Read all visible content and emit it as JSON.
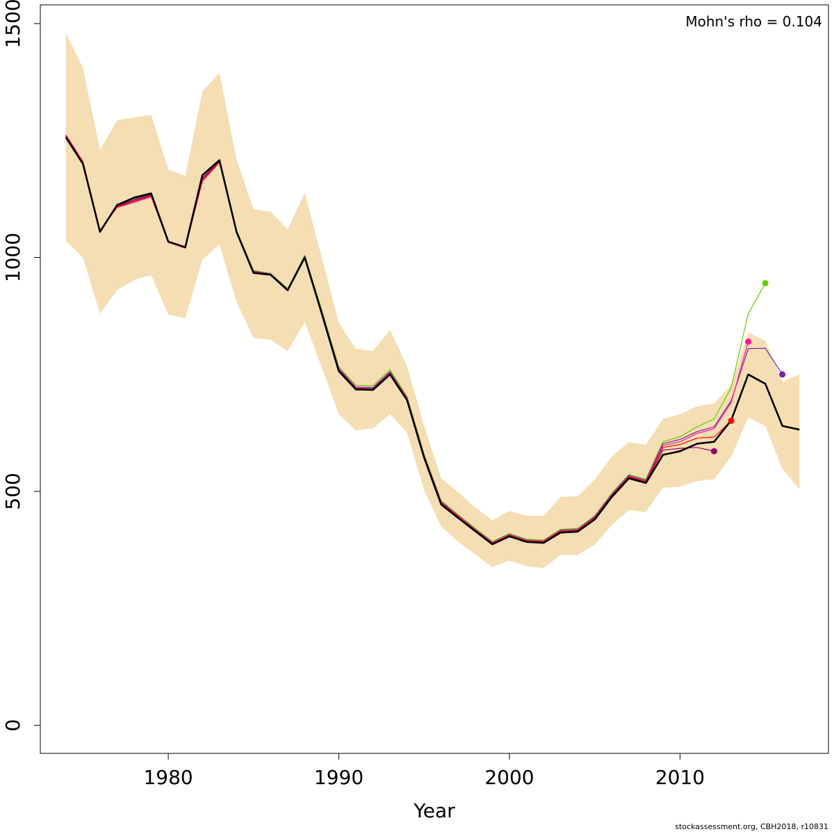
{
  "chart_data": {
    "type": "line",
    "title": "",
    "xlabel": "Year",
    "ylabel": "",
    "xlim": [
      1972.5,
      2018.7
    ],
    "ylim": [
      -60,
      1540
    ],
    "x_ticks": [
      1980,
      1990,
      2000,
      2010
    ],
    "y_ticks": [
      0,
      500,
      1000,
      1500
    ],
    "grid": false,
    "annotation": "Mohn's rho = 0.104",
    "colors": {
      "band": "#f5deb3",
      "base": "#000000",
      "peel1": "#66cc00",
      "peel2": "#7a1fa2",
      "peel3": "#ff1493",
      "peel4": "#ff0000",
      "peel5": "#990066"
    },
    "confidence_band": {
      "x": [
        1974,
        1975,
        1976,
        1977,
        1978,
        1979,
        1980,
        1981,
        1982,
        1983,
        1984,
        1985,
        1986,
        1987,
        1988,
        1989,
        1990,
        1991,
        1992,
        1993,
        1994,
        1995,
        1996,
        1997,
        1998,
        1999,
        2000,
        2001,
        2002,
        2003,
        2004,
        2005,
        2006,
        2007,
        2008,
        2009,
        2010,
        2011,
        2012,
        2013,
        2014,
        2015,
        2016,
        2017
      ],
      "upper": [
        1480,
        1405,
        1230,
        1293,
        1300,
        1305,
        1188,
        1175,
        1355,
        1395,
        1210,
        1103,
        1098,
        1060,
        1138,
        1000,
        860,
        805,
        800,
        845,
        768,
        640,
        528,
        498,
        466,
        438,
        458,
        448,
        448,
        488,
        490,
        525,
        575,
        605,
        600,
        655,
        665,
        682,
        688,
        728,
        840,
        822,
        735,
        750
      ],
      "lower": [
        1035,
        1000,
        880,
        930,
        952,
        962,
        878,
        870,
        995,
        1028,
        905,
        828,
        824,
        800,
        862,
        765,
        665,
        630,
        635,
        665,
        625,
        502,
        425,
        392,
        365,
        338,
        352,
        340,
        336,
        364,
        364,
        386,
        428,
        460,
        456,
        508,
        510,
        522,
        526,
        574,
        658,
        640,
        548,
        505
      ]
    },
    "series": [
      {
        "key": "base",
        "x": [
          1974,
          1975,
          1976,
          1977,
          1978,
          1979,
          1980,
          1981,
          1982,
          1983,
          1984,
          1985,
          1986,
          1987,
          1988,
          1989,
          1990,
          1991,
          1992,
          1993,
          1994,
          1995,
          1996,
          1997,
          1998,
          1999,
          2000,
          2001,
          2002,
          2003,
          2004,
          2005,
          2006,
          2007,
          2008,
          2009,
          2010,
          2011,
          2012,
          2013,
          2014,
          2015,
          2016,
          2017
        ],
        "values": [
          1257,
          1200,
          1055,
          1112,
          1128,
          1137,
          1034,
          1022,
          1176,
          1208,
          1055,
          967,
          963,
          930,
          1000,
          880,
          757,
          718,
          717,
          750,
          695,
          572,
          472,
          443,
          415,
          387,
          404,
          392,
          390,
          412,
          414,
          440,
          488,
          528,
          518,
          578,
          586,
          602,
          606,
          652,
          750,
          730,
          640,
          632
        ]
      },
      {
        "key": "peel1",
        "x": [
          1974,
          1975,
          1976,
          1977,
          1978,
          1979,
          1980,
          1981,
          1982,
          1983,
          1984,
          1985,
          1986,
          1987,
          1988,
          1989,
          1990,
          1991,
          1992,
          1993,
          1994,
          1995,
          1996,
          1997,
          1998,
          1999,
          2000,
          2001,
          2002,
          2003,
          2004,
          2005,
          2006,
          2007,
          2008,
          2009,
          2010,
          2011,
          2012,
          2013,
          2014,
          2015
        ],
        "values": [
          1260,
          1203,
          1057,
          1110,
          1125,
          1135,
          1034,
          1022,
          1172,
          1206,
          1058,
          972,
          966,
          934,
          1005,
          888,
          766,
          727,
          726,
          760,
          703,
          579,
          480,
          450,
          421,
          393,
          410,
          398,
          396,
          419,
          421,
          448,
          496,
          536,
          526,
          606,
          617,
          638,
          655,
          722,
          880,
          945
        ]
      },
      {
        "key": "peel2",
        "x": [
          1974,
          1975,
          1976,
          1977,
          1978,
          1979,
          1980,
          1981,
          1982,
          1983,
          1984,
          1985,
          1986,
          1987,
          1988,
          1989,
          1990,
          1991,
          1992,
          1993,
          1994,
          1995,
          1996,
          1997,
          1998,
          1999,
          2000,
          2001,
          2002,
          2003,
          2004,
          2005,
          2006,
          2007,
          2008,
          2009,
          2010,
          2011,
          2012,
          2013,
          2014,
          2015,
          2016
        ],
        "values": [
          1260,
          1203,
          1056,
          1109,
          1122,
          1133,
          1033,
          1021,
          1168,
          1205,
          1057,
          971,
          965,
          932,
          1003,
          885,
          763,
          723,
          722,
          756,
          700,
          577,
          478,
          448,
          419,
          391,
          408,
          396,
          394,
          417,
          419,
          446,
          494,
          534,
          524,
          602,
          611,
          628,
          638,
          694,
          805,
          806,
          750
        ]
      },
      {
        "key": "peel3",
        "x": [
          1974,
          1975,
          1976,
          1977,
          1978,
          1979,
          1980,
          1981,
          1982,
          1983,
          1984,
          1985,
          1986,
          1987,
          1988,
          1989,
          1990,
          1991,
          1992,
          1993,
          1994,
          1995,
          1996,
          1997,
          1998,
          1999,
          2000,
          2001,
          2002,
          2003,
          2004,
          2005,
          2006,
          2007,
          2008,
          2009,
          2010,
          2011,
          2012,
          2013,
          2014
        ],
        "values": [
          1262,
          1205,
          1058,
          1107,
          1118,
          1130,
          1032,
          1020,
          1163,
          1203,
          1056,
          970,
          964,
          931,
          1002,
          883,
          761,
          721,
          720,
          754,
          699,
          576,
          477,
          447,
          418,
          390,
          407,
          395,
          393,
          416,
          418,
          445,
          492,
          532,
          522,
          598,
          606,
          624,
          634,
          690,
          820
        ]
      },
      {
        "key": "peel4",
        "x": [
          1974,
          1975,
          1976,
          1977,
          1978,
          1979,
          1980,
          1981,
          1982,
          1983,
          1984,
          1985,
          1986,
          1987,
          1988,
          1989,
          1990,
          1991,
          1992,
          1993,
          1994,
          1995,
          1996,
          1997,
          1998,
          1999,
          2000,
          2001,
          2002,
          2003,
          2004,
          2005,
          2006,
          2007,
          2008,
          2009,
          2010,
          2011,
          2012,
          2013
        ],
        "values": [
          1261,
          1204,
          1057,
          1108,
          1120,
          1131,
          1033,
          1021,
          1165,
          1204,
          1056,
          969,
          964,
          931,
          1001,
          882,
          760,
          720,
          719,
          753,
          698,
          575,
          476,
          446,
          417,
          389,
          406,
          394,
          392,
          415,
          417,
          444,
          491,
          531,
          521,
          594,
          600,
          614,
          616,
          651
        ]
      },
      {
        "key": "peel5",
        "x": [
          1974,
          1975,
          1976,
          1977,
          1978,
          1979,
          1980,
          1981,
          1982,
          1983,
          1984,
          1985,
          1986,
          1987,
          1988,
          1989,
          1990,
          1991,
          1992,
          1993,
          1994,
          1995,
          1996,
          1997,
          1998,
          1999,
          2000,
          2001,
          2002,
          2003,
          2004,
          2005,
          2006,
          2007,
          2008,
          2009,
          2010,
          2011,
          2012
        ],
        "values": [
          1259,
          1202,
          1056,
          1110,
          1124,
          1134,
          1034,
          1022,
          1170,
          1206,
          1057,
          969,
          964,
          930,
          1001,
          882,
          760,
          720,
          719,
          752,
          697,
          574,
          475,
          445,
          416,
          388,
          405,
          393,
          391,
          414,
          416,
          443,
          490,
          530,
          520,
          588,
          592,
          594,
          586
        ]
      }
    ],
    "endpoints": [
      {
        "key": "peel1",
        "x": 2015,
        "y": 945
      },
      {
        "key": "peel2",
        "x": 2016,
        "y": 750
      },
      {
        "key": "peel3",
        "x": 2014,
        "y": 820
      },
      {
        "key": "peel4",
        "x": 2013,
        "y": 651
      },
      {
        "key": "peel5",
        "x": 2012,
        "y": 586
      }
    ]
  },
  "footer": "stockassessment.org, CBH2018, r10831"
}
